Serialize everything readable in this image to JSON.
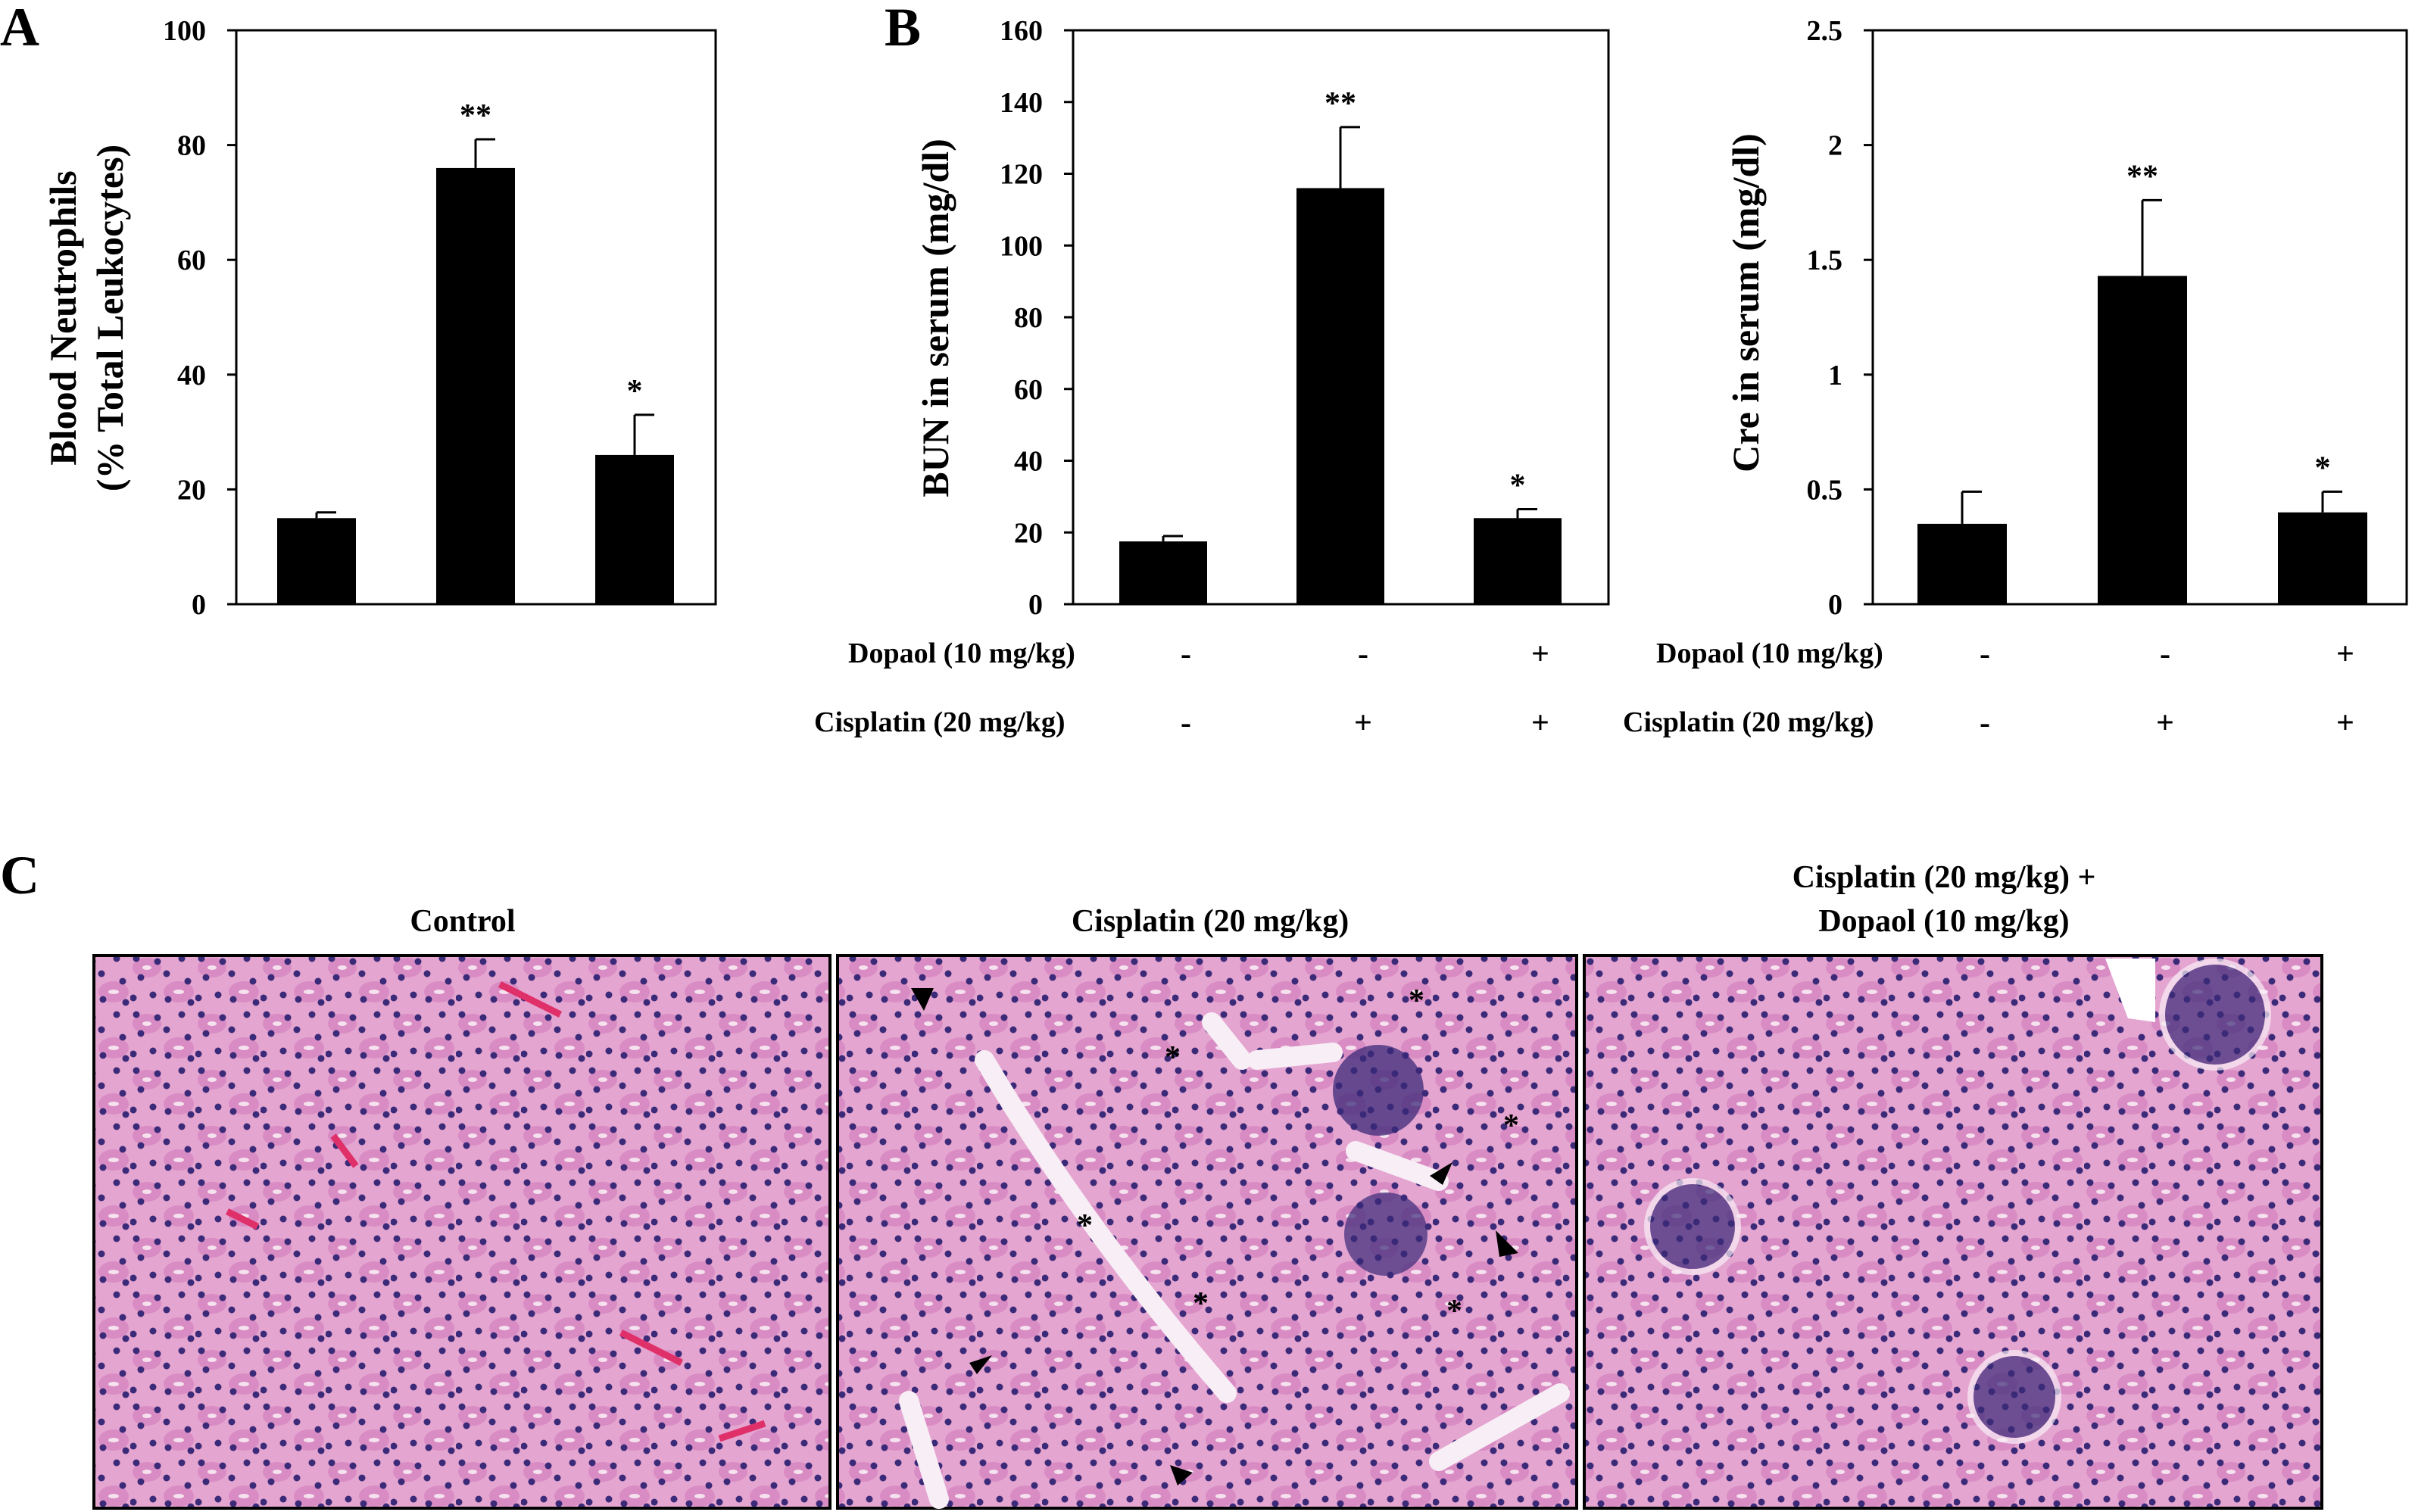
{
  "panels": {
    "A": "A",
    "B": "B",
    "C": "C"
  },
  "chart_data": [
    {
      "type": "bar",
      "panel": "A",
      "ylabel_line1": "Blood Neutrophils",
      "ylabel_line2": "(% Total Leukocytes)",
      "ylim": [
        0,
        100
      ],
      "yticks": [
        0,
        20,
        40,
        60,
        80,
        100
      ],
      "groups": [
        "Control",
        "Cisplatin (20 mg/kg)",
        "Cisplatin (20 mg/kg) + Dopaol (10 mg/kg)"
      ],
      "values": [
        15,
        76,
        26
      ],
      "errors": [
        1,
        5,
        7
      ],
      "significance": [
        "",
        "**",
        "*"
      ],
      "bar_color": "#000000"
    },
    {
      "type": "bar",
      "panel": "B",
      "ylabel": "BUN in serum (mg/dl)",
      "ylim": [
        0,
        160
      ],
      "yticks": [
        0,
        20,
        40,
        60,
        80,
        100,
        120,
        140,
        160
      ],
      "groups": [
        "Control",
        "Cisplatin (20 mg/kg)",
        "Cisplatin (20 mg/kg) + Dopaol (10 mg/kg)"
      ],
      "values": [
        17.5,
        116,
        24
      ],
      "errors": [
        1.5,
        17,
        2.5
      ],
      "significance": [
        "",
        "**",
        "*"
      ],
      "bar_color": "#000000"
    },
    {
      "type": "bar",
      "panel": "B",
      "ylabel": "Cre in serum (mg/dl)",
      "ylim": [
        0,
        2.5
      ],
      "yticks": [
        "0",
        "0.5",
        "1",
        "1.5",
        "2",
        "2.5"
      ],
      "groups": [
        "Control",
        "Cisplatin (20 mg/kg)",
        "Cisplatin (20 mg/kg) + Dopaol (10 mg/kg)"
      ],
      "values": [
        0.35,
        1.43,
        0.4
      ],
      "errors": [
        0.14,
        0.33,
        0.09
      ],
      "significance": [
        "",
        "**",
        "*"
      ],
      "bar_color": "#000000"
    }
  ],
  "conditions": {
    "dopaol_label": "Dopaol (10 mg/kg)",
    "cisplatin_label": "Cisplatin (20 mg/kg)",
    "dopaol_signs": [
      "-",
      "-",
      "+"
    ],
    "cisplatin_signs": [
      "-",
      "+",
      "+"
    ]
  },
  "histology": {
    "titles": {
      "control": "Control",
      "cisplatin": "Cisplatin (20 mg/kg)",
      "combo_line1": "Cisplatin (20 mg/kg) +",
      "combo_line2": "Dopaol (10 mg/kg)"
    },
    "asterisk_mark": "*",
    "tissue_colors": {
      "background": "#e4a5d0",
      "cytoplasm": "#d98cc4",
      "nucleus": "#3b2a78",
      "lumen": "#f8eef6",
      "rbc": "#e0306a"
    }
  }
}
